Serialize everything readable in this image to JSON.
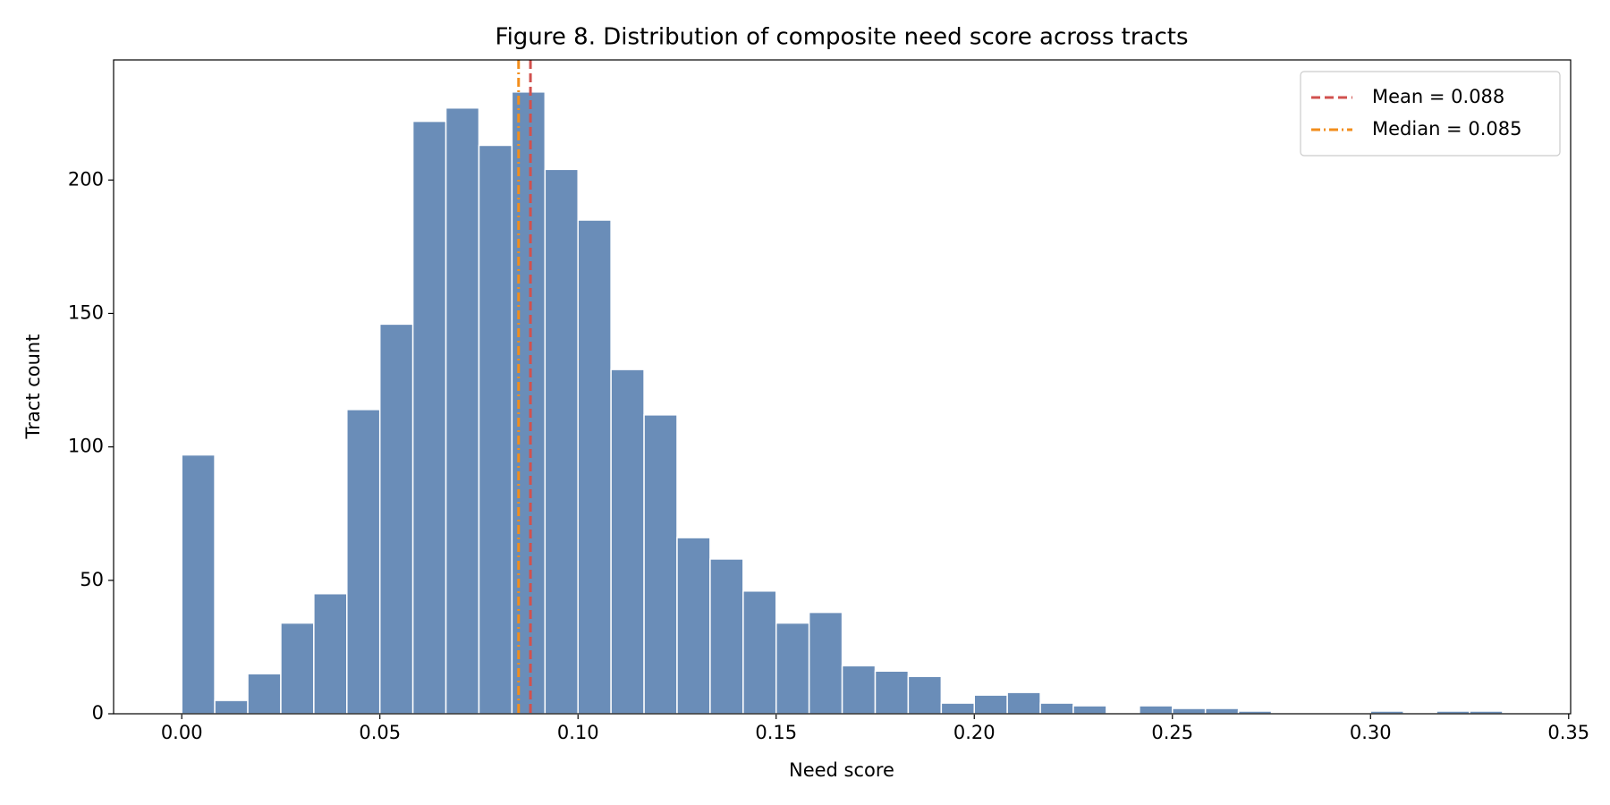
{
  "chart_data": {
    "type": "histogram",
    "title": "Figure 8. Distribution of composite need score across tracts",
    "x_label": "Need score",
    "y_label": "Tract count",
    "bins": [
      0,
      0.00833,
      0.01667,
      0.025,
      0.03333,
      0.04167,
      0.05,
      0.05833,
      0.06667,
      0.075,
      0.08333,
      0.09167,
      0.1,
      0.10833,
      0.11667,
      0.125,
      0.13333,
      0.14167,
      0.15,
      0.15833,
      0.16667,
      0.175,
      0.18333,
      0.19167,
      0.2,
      0.20833,
      0.21667,
      0.225,
      0.23333,
      0.24167,
      0.25,
      0.25833,
      0.26667,
      0.275,
      0.28333,
      0.29167,
      0.3,
      0.30833,
      0.31667,
      0.325,
      0.33333
    ],
    "counts": [
      97,
      5,
      15,
      34,
      45,
      114,
      146,
      222,
      227,
      213,
      233,
      204,
      185,
      129,
      112,
      66,
      58,
      46,
      34,
      38,
      18,
      16,
      14,
      4,
      7,
      8,
      4,
      3,
      0,
      3,
      2,
      2,
      1,
      0,
      0,
      0,
      1,
      0,
      1,
      1
    ],
    "color": "#6a8db8",
    "reference_lines": [
      {
        "label": "Mean = 0.088",
        "value": 0.088,
        "color": "#d1514e",
        "style": "dashed"
      },
      {
        "label": "Median = 0.085",
        "value": 0.085,
        "color": "#f28e1c",
        "style": "dashdot"
      }
    ],
    "xlim": [
      -0.0172,
      0.3505
    ],
    "xticks": [
      {
        "value": 0,
        "label": "0.00"
      },
      {
        "value": 0.05,
        "label": "0.05"
      },
      {
        "value": 0.1,
        "label": "0.10"
      },
      {
        "value": 0.15,
        "label": "0.15"
      },
      {
        "value": 0.2,
        "label": "0.20"
      },
      {
        "value": 0.25,
        "label": "0.25"
      },
      {
        "value": 0.3,
        "label": "0.30"
      },
      {
        "value": 0.35,
        "label": "0.35"
      }
    ],
    "ylim": [
      0,
      245
    ],
    "yticks": [
      0,
      50,
      100,
      150,
      200
    ],
    "legend": "upper right"
  }
}
